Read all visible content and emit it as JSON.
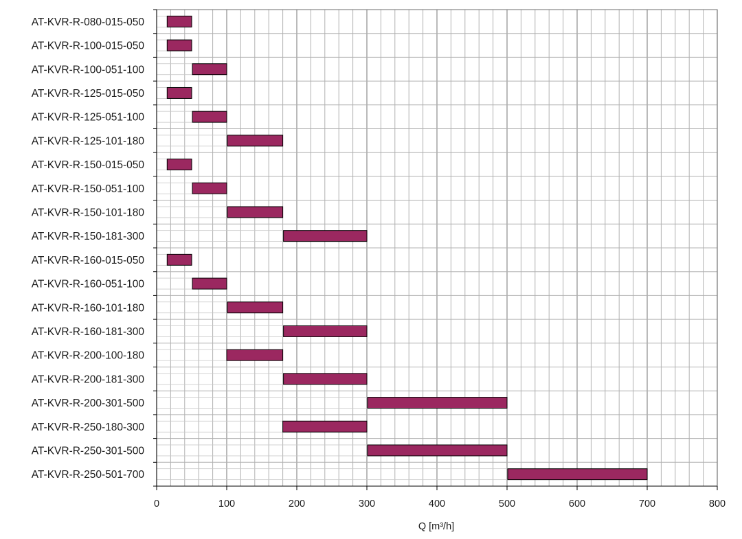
{
  "chart_data": {
    "type": "bar",
    "orientation": "horizontal",
    "subtype": "range",
    "categories": [
      "AT-KVR-R-080-015-050",
      "AT-KVR-R-100-015-050",
      "AT-KVR-R-100-051-100",
      "AT-KVR-R-125-015-050",
      "AT-KVR-R-125-051-100",
      "AT-KVR-R-125-101-180",
      "AT-KVR-R-150-015-050",
      "AT-KVR-R-150-051-100",
      "AT-KVR-R-150-101-180",
      "AT-KVR-R-150-181-300",
      "AT-KVR-R-160-015-050",
      "AT-KVR-R-160-051-100",
      "AT-KVR-R-160-101-180",
      "AT-KVR-R-160-181-300",
      "AT-KVR-R-200-100-180",
      "AT-KVR-R-200-181-300",
      "AT-KVR-R-200-301-500",
      "AT-KVR-R-250-180-300",
      "AT-KVR-R-250-301-500",
      "AT-KVR-R-250-501-700"
    ],
    "ranges": [
      [
        15,
        50
      ],
      [
        15,
        50
      ],
      [
        51,
        100
      ],
      [
        15,
        50
      ],
      [
        51,
        100
      ],
      [
        101,
        180
      ],
      [
        15,
        50
      ],
      [
        51,
        100
      ],
      [
        101,
        180
      ],
      [
        181,
        300
      ],
      [
        15,
        50
      ],
      [
        51,
        100
      ],
      [
        101,
        180
      ],
      [
        181,
        300
      ],
      [
        100,
        180
      ],
      [
        181,
        300
      ],
      [
        301,
        500
      ],
      [
        180,
        300
      ],
      [
        301,
        500
      ],
      [
        501,
        700
      ]
    ],
    "xlabel": "Q [m³/h]",
    "ylabel": "",
    "title": "",
    "xlim": [
      0,
      800
    ],
    "xticks": [
      0,
      100,
      200,
      300,
      400,
      500,
      600,
      700,
      800
    ],
    "xtick_labels": [
      "0",
      "100",
      "200",
      "300",
      "400",
      "500",
      "600",
      "700",
      "800"
    ],
    "minor_grid_step": 20,
    "grid": true,
    "colors": {
      "bar_fill": "#9b2860",
      "bar_stroke": "#000000",
      "grid_major": "#8c8c8c",
      "grid_minor": "#b0b0b0"
    }
  }
}
